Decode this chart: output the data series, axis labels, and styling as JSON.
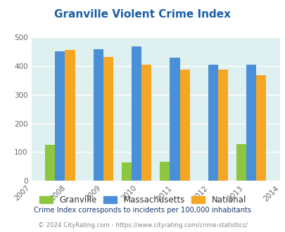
{
  "title": "Granville Violent Crime Index",
  "years_all": [
    2007,
    2008,
    2009,
    2010,
    2011,
    2012,
    2013,
    2014
  ],
  "years_data": [
    2008,
    2009,
    2010,
    2011,
    2012,
    2013
  ],
  "granville": [
    125,
    0,
    65,
    68,
    0,
    128
  ],
  "massachusetts": [
    450,
    458,
    467,
    429,
    405,
    405
  ],
  "national": [
    455,
    432,
    405,
    387,
    387,
    367
  ],
  "bar_colors": {
    "granville": "#8dc63f",
    "massachusetts": "#4a90d9",
    "national": "#f5a623"
  },
  "ylim": [
    0,
    500
  ],
  "yticks": [
    0,
    100,
    200,
    300,
    400,
    500
  ],
  "bg_color": "#dff0f0",
  "title_color": "#1a5fa8",
  "legend_labels": [
    "Granville",
    "Massachusetts",
    "National"
  ],
  "footnote1": "Crime Index corresponds to incidents per 100,000 inhabitants",
  "footnote2": "© 2024 CityRating.com - https://www.cityrating.com/crime-statistics/",
  "tick_color": "#666666",
  "footnote1_color": "#1a3a6e",
  "footnote2_color": "#888888"
}
